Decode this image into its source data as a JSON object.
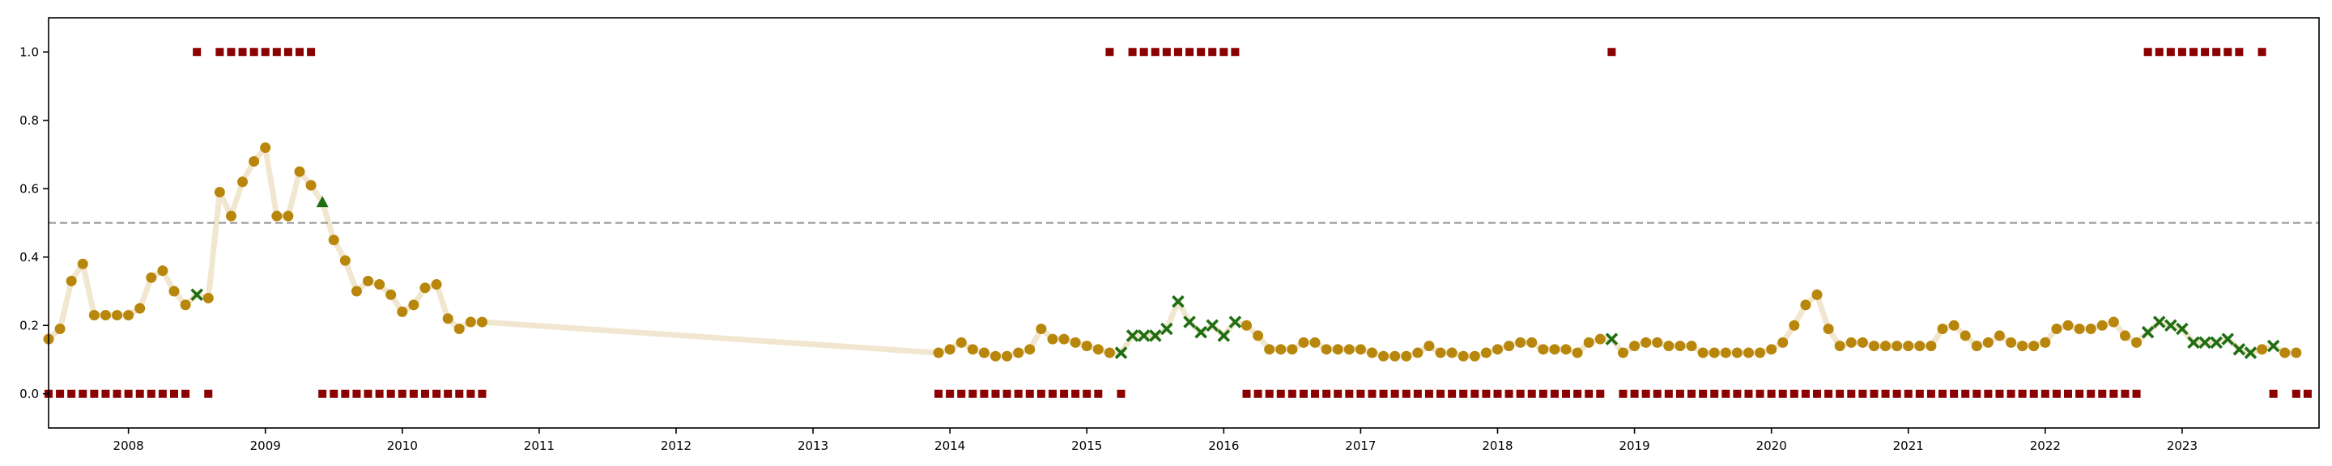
{
  "chart_data": {
    "type": "scatter",
    "title": "",
    "xlabel": "",
    "ylabel": "",
    "x_range": [
      "2007-06-01",
      "2024-01-01"
    ],
    "ylim": [
      -0.1,
      1.1
    ],
    "x_tick_labels": [
      "2008",
      "2009",
      "2010",
      "2011",
      "2012",
      "2013",
      "2014",
      "2015",
      "2016",
      "2017",
      "2018",
      "2019",
      "2020",
      "2021",
      "2022",
      "2023"
    ],
    "y_tick_labels": [
      "0.0",
      "0.2",
      "0.4",
      "0.6",
      "0.8",
      "1.0"
    ],
    "y_tick_values": [
      0.0,
      0.2,
      0.4,
      0.6,
      0.8,
      1.0
    ],
    "threshold": 0.5,
    "grid": false,
    "legend": "none",
    "colors": {
      "line": "#f1e6cf",
      "circle": "#b8860b",
      "cross": "#1f6e12",
      "triangle": "#1f6e12",
      "square": "#8b0000",
      "threshold": "#999999"
    },
    "score_series": [
      [
        "2007-06-01",
        0.16
      ],
      [
        "2007-07-01",
        0.19
      ],
      [
        "2007-08-01",
        0.33
      ],
      [
        "2007-09-01",
        0.38
      ],
      [
        "2007-10-01",
        0.23
      ],
      [
        "2007-11-01",
        0.23
      ],
      [
        "2007-12-01",
        0.23
      ],
      [
        "2008-01-01",
        0.23
      ],
      [
        "2008-02-01",
        0.25
      ],
      [
        "2008-03-01",
        0.34
      ],
      [
        "2008-04-01",
        0.36
      ],
      [
        "2008-05-01",
        0.3
      ],
      [
        "2008-06-01",
        0.26
      ],
      [
        "2008-07-01",
        0.29
      ],
      [
        "2008-08-01",
        0.28
      ],
      [
        "2008-09-01",
        0.59
      ],
      [
        "2008-10-01",
        0.52
      ],
      [
        "2008-11-01",
        0.62
      ],
      [
        "2008-12-01",
        0.68
      ],
      [
        "2009-01-01",
        0.72
      ],
      [
        "2009-02-01",
        0.52
      ],
      [
        "2009-03-01",
        0.52
      ],
      [
        "2009-04-01",
        0.65
      ],
      [
        "2009-05-01",
        0.61
      ],
      [
        "2009-06-01",
        0.56
      ],
      [
        "2009-07-01",
        0.45
      ],
      [
        "2009-08-01",
        0.39
      ],
      [
        "2009-09-01",
        0.3
      ],
      [
        "2009-10-01",
        0.33
      ],
      [
        "2009-11-01",
        0.32
      ],
      [
        "2009-12-01",
        0.29
      ],
      [
        "2010-01-01",
        0.24
      ],
      [
        "2010-02-01",
        0.26
      ],
      [
        "2010-03-01",
        0.31
      ],
      [
        "2010-04-01",
        0.32
      ],
      [
        "2010-05-01",
        0.22
      ],
      [
        "2010-06-01",
        0.19
      ],
      [
        "2010-07-01",
        0.21
      ],
      [
        "2010-08-01",
        0.21
      ],
      [
        "2013-12-01",
        0.12
      ],
      [
        "2014-01-01",
        0.13
      ],
      [
        "2014-02-01",
        0.15
      ],
      [
        "2014-03-01",
        0.13
      ],
      [
        "2014-04-01",
        0.12
      ],
      [
        "2014-05-01",
        0.11
      ],
      [
        "2014-06-01",
        0.11
      ],
      [
        "2014-07-01",
        0.12
      ],
      [
        "2014-08-01",
        0.13
      ],
      [
        "2014-09-01",
        0.19
      ],
      [
        "2014-10-01",
        0.16
      ],
      [
        "2014-11-01",
        0.16
      ],
      [
        "2014-12-01",
        0.15
      ],
      [
        "2015-01-01",
        0.14
      ],
      [
        "2015-02-01",
        0.13
      ],
      [
        "2015-03-01",
        0.12
      ],
      [
        "2015-04-01",
        0.12
      ],
      [
        "2015-05-01",
        0.17
      ],
      [
        "2015-06-01",
        0.17
      ],
      [
        "2015-07-01",
        0.17
      ],
      [
        "2015-08-01",
        0.19
      ],
      [
        "2015-09-01",
        0.27
      ],
      [
        "2015-10-01",
        0.21
      ],
      [
        "2015-11-01",
        0.18
      ],
      [
        "2015-12-01",
        0.2
      ],
      [
        "2016-01-01",
        0.17
      ],
      [
        "2016-02-01",
        0.21
      ],
      [
        "2016-03-01",
        0.2
      ],
      [
        "2016-04-01",
        0.17
      ],
      [
        "2016-05-01",
        0.13
      ],
      [
        "2016-06-01",
        0.13
      ],
      [
        "2016-07-01",
        0.13
      ],
      [
        "2016-08-01",
        0.15
      ],
      [
        "2016-09-01",
        0.15
      ],
      [
        "2016-10-01",
        0.13
      ],
      [
        "2016-11-01",
        0.13
      ],
      [
        "2016-12-01",
        0.13
      ],
      [
        "2017-01-01",
        0.13
      ],
      [
        "2017-02-01",
        0.12
      ],
      [
        "2017-03-01",
        0.11
      ],
      [
        "2017-04-01",
        0.11
      ],
      [
        "2017-05-01",
        0.11
      ],
      [
        "2017-06-01",
        0.12
      ],
      [
        "2017-07-01",
        0.14
      ],
      [
        "2017-08-01",
        0.12
      ],
      [
        "2017-09-01",
        0.12
      ],
      [
        "2017-10-01",
        0.11
      ],
      [
        "2017-11-01",
        0.11
      ],
      [
        "2017-12-01",
        0.12
      ],
      [
        "2018-01-01",
        0.13
      ],
      [
        "2018-02-01",
        0.14
      ],
      [
        "2018-03-01",
        0.15
      ],
      [
        "2018-04-01",
        0.15
      ],
      [
        "2018-05-01",
        0.13
      ],
      [
        "2018-06-01",
        0.13
      ],
      [
        "2018-07-01",
        0.13
      ],
      [
        "2018-08-01",
        0.12
      ],
      [
        "2018-09-01",
        0.15
      ],
      [
        "2018-10-01",
        0.16
      ],
      [
        "2018-11-01",
        0.16
      ],
      [
        "2018-12-01",
        0.12
      ],
      [
        "2019-01-01",
        0.14
      ],
      [
        "2019-02-01",
        0.15
      ],
      [
        "2019-03-01",
        0.15
      ],
      [
        "2019-04-01",
        0.14
      ],
      [
        "2019-05-01",
        0.14
      ],
      [
        "2019-06-01",
        0.14
      ],
      [
        "2019-07-01",
        0.12
      ],
      [
        "2019-08-01",
        0.12
      ],
      [
        "2019-09-01",
        0.12
      ],
      [
        "2019-10-01",
        0.12
      ],
      [
        "2019-11-01",
        0.12
      ],
      [
        "2019-12-01",
        0.12
      ],
      [
        "2020-01-01",
        0.13
      ],
      [
        "2020-02-01",
        0.15
      ],
      [
        "2020-03-01",
        0.2
      ],
      [
        "2020-04-01",
        0.26
      ],
      [
        "2020-05-01",
        0.29
      ],
      [
        "2020-06-01",
        0.19
      ],
      [
        "2020-07-01",
        0.14
      ],
      [
        "2020-08-01",
        0.15
      ],
      [
        "2020-09-01",
        0.15
      ],
      [
        "2020-10-01",
        0.14
      ],
      [
        "2020-11-01",
        0.14
      ],
      [
        "2020-12-01",
        0.14
      ],
      [
        "2021-01-01",
        0.14
      ],
      [
        "2021-02-01",
        0.14
      ],
      [
        "2021-03-01",
        0.14
      ],
      [
        "2021-04-01",
        0.19
      ],
      [
        "2021-05-01",
        0.2
      ],
      [
        "2021-06-01",
        0.17
      ],
      [
        "2021-07-01",
        0.14
      ],
      [
        "2021-08-01",
        0.15
      ],
      [
        "2021-09-01",
        0.17
      ],
      [
        "2021-10-01",
        0.15
      ],
      [
        "2021-11-01",
        0.14
      ],
      [
        "2021-12-01",
        0.14
      ],
      [
        "2022-01-01",
        0.15
      ],
      [
        "2022-02-01",
        0.19
      ],
      [
        "2022-03-01",
        0.2
      ],
      [
        "2022-04-01",
        0.19
      ],
      [
        "2022-05-01",
        0.19
      ],
      [
        "2022-06-01",
        0.2
      ],
      [
        "2022-07-01",
        0.21
      ],
      [
        "2022-08-01",
        0.17
      ],
      [
        "2022-09-01",
        0.15
      ],
      [
        "2022-10-01",
        0.18
      ],
      [
        "2022-11-01",
        0.21
      ],
      [
        "2022-12-01",
        0.2
      ],
      [
        "2023-01-01",
        0.19
      ],
      [
        "2023-02-01",
        0.15
      ],
      [
        "2023-03-01",
        0.15
      ],
      [
        "2023-04-01",
        0.15
      ],
      [
        "2023-05-01",
        0.16
      ],
      [
        "2023-06-01",
        0.13
      ],
      [
        "2023-07-01",
        0.12
      ],
      [
        "2023-08-01",
        0.13
      ],
      [
        "2023-09-01",
        0.14
      ],
      [
        "2023-10-01",
        0.12
      ],
      [
        "2023-11-01",
        0.12
      ]
    ],
    "cross_dates": [
      "2008-07-01",
      "2015-04-01",
      "2015-05-01",
      "2015-06-01",
      "2015-07-01",
      "2015-08-01",
      "2015-09-01",
      "2015-10-01",
      "2015-11-01",
      "2015-12-01",
      "2016-01-01",
      "2016-02-01",
      "2018-11-01",
      "2022-10-01",
      "2022-11-01",
      "2022-12-01",
      "2023-01-01",
      "2023-02-01",
      "2023-03-01",
      "2023-04-01",
      "2023-05-01",
      "2023-06-01",
      "2023-07-01",
      "2023-09-01"
    ],
    "triangle_dates": [
      "2009-06-01"
    ],
    "signal_high_dates": [
      "2008-07-01",
      "2008-09-01",
      "2008-10-01",
      "2008-11-01",
      "2008-12-01",
      "2009-01-01",
      "2009-02-01",
      "2009-03-01",
      "2009-04-01",
      "2009-05-01",
      "2015-03-01",
      "2015-05-01",
      "2015-06-01",
      "2015-07-01",
      "2015-08-01",
      "2015-09-01",
      "2015-10-01",
      "2015-11-01",
      "2015-12-01",
      "2016-01-01",
      "2016-02-01",
      "2018-11-01",
      "2022-10-01",
      "2022-11-01",
      "2022-12-01",
      "2023-01-01",
      "2023-02-01",
      "2023-03-01",
      "2023-04-01",
      "2023-05-01",
      "2023-06-01",
      "2023-08-01"
    ],
    "signal_low_ranges": [
      [
        "2007-06-01",
        "2008-06-01"
      ],
      [
        "2008-08-01",
        "2008-08-01"
      ],
      [
        "2009-06-01",
        "2010-08-01"
      ],
      [
        "2013-12-01",
        "2015-02-01"
      ],
      [
        "2015-04-01",
        "2015-04-01"
      ],
      [
        "2016-03-01",
        "2018-10-01"
      ],
      [
        "2018-12-01",
        "2022-09-01"
      ],
      [
        "2023-09-01",
        "2023-09-01"
      ],
      [
        "2023-11-01",
        "2023-12-01"
      ]
    ]
  }
}
